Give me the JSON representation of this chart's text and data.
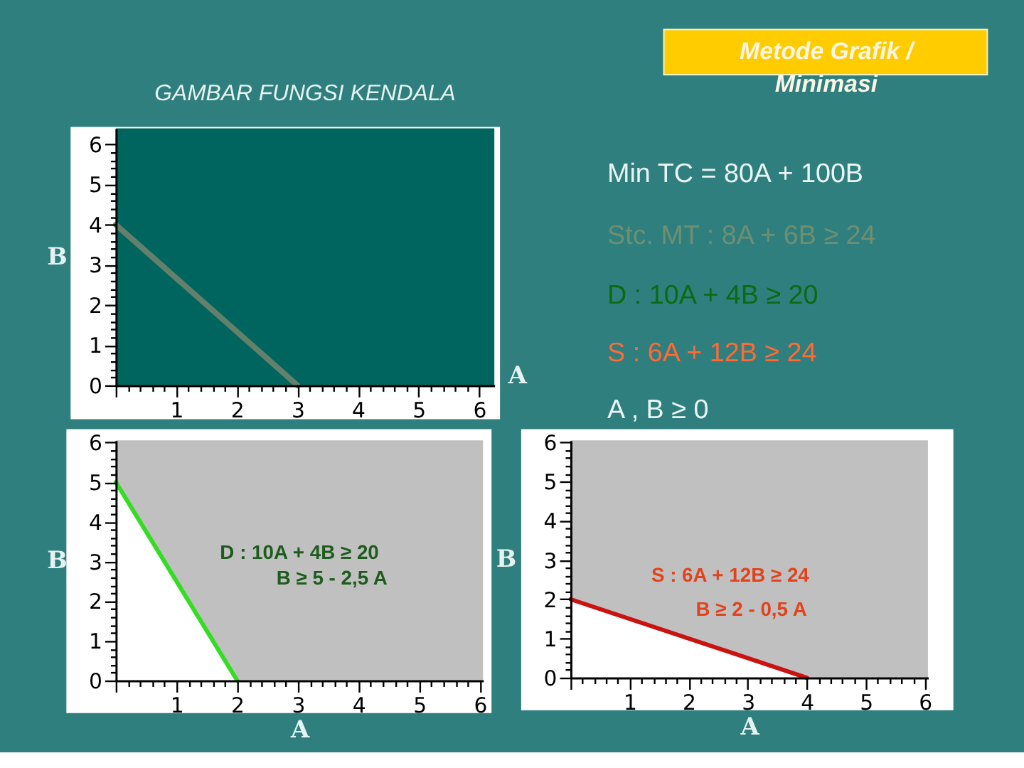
{
  "chart_data": [
    {
      "type": "line",
      "title": "GAMBAR FUNGSI KENDALA",
      "xlabel": "A",
      "ylabel": "B",
      "x": [
        0,
        3
      ],
      "series": [
        {
          "color": "#62806a",
          "values": [
            4,
            0
          ]
        }
      ],
      "xlim": [
        0,
        6.25
      ],
      "ylim": [
        0,
        6.4
      ],
      "xticks": [
        {
          "value": 0,
          "label": null
        },
        {
          "value": 0.2,
          "label": null
        },
        {
          "value": 0.4,
          "label": null
        },
        {
          "value": 0.6,
          "label": null
        },
        {
          "value": 0.8,
          "label": null
        },
        1,
        {
          "value": 1.2,
          "label": null
        },
        {
          "value": 1.4,
          "label": null
        },
        {
          "value": 1.6,
          "label": null
        },
        {
          "value": 1.8,
          "label": null
        },
        2,
        {
          "value": 2.2,
          "label": null
        },
        {
          "value": 2.4,
          "label": null
        },
        {
          "value": 2.6,
          "label": null
        },
        {
          "value": 2.8,
          "label": null
        },
        3,
        {
          "value": 3.2,
          "label": null
        },
        {
          "value": 3.4,
          "label": null
        },
        {
          "value": 3.6,
          "label": null
        },
        {
          "value": 3.8,
          "label": null
        },
        4,
        {
          "value": 4.2,
          "label": null
        },
        {
          "value": 4.4,
          "label": null
        },
        {
          "value": 4.6,
          "label": null
        },
        {
          "value": 4.8,
          "label": null
        },
        5,
        {
          "value": 5.2,
          "label": null
        },
        {
          "value": 5.4,
          "label": null
        },
        {
          "value": 5.6,
          "label": null
        },
        {
          "value": 5.8,
          "label": null
        },
        6
      ],
      "yticks": [
        0,
        {
          "value": 0.2,
          "label": null
        },
        {
          "value": 0.4,
          "label": null
        },
        {
          "value": 0.6,
          "label": null
        },
        {
          "value": 0.8,
          "label": null
        },
        1,
        {
          "value": 1.2,
          "label": null
        },
        {
          "value": 1.4,
          "label": null
        },
        {
          "value": 1.6,
          "label": null
        },
        {
          "value": 1.8,
          "label": null
        },
        2,
        {
          "value": 2.2,
          "label": null
        },
        {
          "value": 2.4,
          "label": null
        },
        {
          "value": 2.6,
          "label": null
        },
        {
          "value": 2.8,
          "label": null
        },
        3,
        {
          "value": 3.2,
          "label": null
        },
        {
          "value": 3.4,
          "label": null
        },
        {
          "value": 3.6,
          "label": null
        },
        {
          "value": 3.8,
          "label": null
        },
        4,
        {
          "value": 4.2,
          "label": null
        },
        {
          "value": 4.4,
          "label": null
        },
        {
          "value": 4.6,
          "label": null
        },
        {
          "value": 4.8,
          "label": null
        },
        5,
        {
          "value": 5.2,
          "label": null
        },
        {
          "value": 5.4,
          "label": null
        },
        {
          "value": 5.6,
          "label": null
        },
        {
          "value": 5.8,
          "label": null
        },
        6
      ]
    },
    {
      "type": "other",
      "title": "Metode Grafik / Minimasi",
      "annotations": [
        "Min TC = 80A + 100B",
        "Stc. MT : 8A + 6B ≥ 24",
        "D : 10A + 4B ≥ 20",
        "S : 6A + 12B ≥ 24",
        "A , B ≥ 0"
      ],
      "colors": [
        "#eaf4f4",
        "#6f8f72",
        "#0b6b12",
        "#ff6a35",
        "#eaf4f4"
      ]
    },
    {
      "type": "line",
      "xlabel": "A",
      "ylabel": "B",
      "x": [
        0,
        2
      ],
      "series": [
        {
          "color": "#33dd22",
          "values": [
            5,
            0
          ],
          "lower": [
            0,
            0
          ],
          "upper": [
            5,
            0
          ]
        }
      ],
      "annotations": [
        "D : 10A + 4B ≥ 20",
        "B ≥ 5 - 2,5 A"
      ],
      "xlim": [
        0,
        6.05
      ],
      "ylim": [
        0,
        6.05
      ],
      "xticks": [
        {
          "value": 0,
          "label": null
        },
        {
          "value": 0.2,
          "label": null
        },
        {
          "value": 0.4,
          "label": null
        },
        {
          "value": 0.6,
          "label": null
        },
        {
          "value": 0.8,
          "label": null
        },
        1,
        {
          "value": 1.2,
          "label": null
        },
        {
          "value": 1.4,
          "label": null
        },
        {
          "value": 1.6,
          "label": null
        },
        {
          "value": 1.8,
          "label": null
        },
        2,
        {
          "value": 2.2,
          "label": null
        },
        {
          "value": 2.4,
          "label": null
        },
        {
          "value": 2.6,
          "label": null
        },
        {
          "value": 2.8,
          "label": null
        },
        3,
        {
          "value": 3.2,
          "label": null
        },
        {
          "value": 3.4,
          "label": null
        },
        {
          "value": 3.6,
          "label": null
        },
        {
          "value": 3.8,
          "label": null
        },
        4,
        {
          "value": 4.2,
          "label": null
        },
        {
          "value": 4.4,
          "label": null
        },
        {
          "value": 4.6,
          "label": null
        },
        {
          "value": 4.8,
          "label": null
        },
        5,
        {
          "value": 5.2,
          "label": null
        },
        {
          "value": 5.4,
          "label": null
        },
        {
          "value": 5.6,
          "label": null
        },
        {
          "value": 5.8,
          "label": null
        },
        6
      ],
      "yticks": [
        0,
        {
          "value": 0.2,
          "label": null
        },
        {
          "value": 0.4,
          "label": null
        },
        {
          "value": 0.6,
          "label": null
        },
        {
          "value": 0.8,
          "label": null
        },
        1,
        {
          "value": 1.2,
          "label": null
        },
        {
          "value": 1.4,
          "label": null
        },
        {
          "value": 1.6,
          "label": null
        },
        {
          "value": 1.8,
          "label": null
        },
        2,
        {
          "value": 2.2,
          "label": null
        },
        {
          "value": 2.4,
          "label": null
        },
        {
          "value": 2.6,
          "label": null
        },
        {
          "value": 2.8,
          "label": null
        },
        3,
        {
          "value": 3.2,
          "label": null
        },
        {
          "value": 3.4,
          "label": null
        },
        {
          "value": 3.6,
          "label": null
        },
        {
          "value": 3.8,
          "label": null
        },
        4,
        {
          "value": 4.2,
          "label": null
        },
        {
          "value": 4.4,
          "label": null
        },
        {
          "value": 4.6,
          "label": null
        },
        {
          "value": 4.8,
          "label": null
        },
        5,
        {
          "value": 5.2,
          "label": null
        },
        {
          "value": 5.4,
          "label": null
        },
        {
          "value": 5.6,
          "label": null
        },
        {
          "value": 5.8,
          "label": null
        },
        6
      ]
    },
    {
      "type": "line",
      "xlabel": "A",
      "ylabel": "B",
      "x": [
        0,
        4
      ],
      "series": [
        {
          "color": "#cc1111",
          "values": [
            2,
            0
          ],
          "lower": [
            0,
            0
          ],
          "upper": [
            2,
            0
          ]
        }
      ],
      "annotations": [
        "S : 6A + 12B ≥ 24",
        "B ≥ 2 - 0,5 A"
      ],
      "xlim": [
        0,
        6.05
      ],
      "ylim": [
        0,
        6.05
      ],
      "xticks": [
        {
          "value": 0,
          "label": null
        },
        {
          "value": 0.2,
          "label": null
        },
        {
          "value": 0.4,
          "label": null
        },
        {
          "value": 0.6,
          "label": null
        },
        {
          "value": 0.8,
          "label": null
        },
        1,
        {
          "value": 1.2,
          "label": null
        },
        {
          "value": 1.4,
          "label": null
        },
        {
          "value": 1.6,
          "label": null
        },
        {
          "value": 1.8,
          "label": null
        },
        2,
        {
          "value": 2.2,
          "label": null
        },
        {
          "value": 2.4,
          "label": null
        },
        {
          "value": 2.6,
          "label": null
        },
        {
          "value": 2.8,
          "label": null
        },
        3,
        {
          "value": 3.2,
          "label": null
        },
        {
          "value": 3.4,
          "label": null
        },
        {
          "value": 3.6,
          "label": null
        },
        {
          "value": 3.8,
          "label": null
        },
        4,
        {
          "value": 4.2,
          "label": null
        },
        {
          "value": 4.4,
          "label": null
        },
        {
          "value": 4.6,
          "label": null
        },
        {
          "value": 4.8,
          "label": null
        },
        5,
        {
          "value": 5.2,
          "label": null
        },
        {
          "value": 5.4,
          "label": null
        },
        {
          "value": 5.6,
          "label": null
        },
        {
          "value": 5.8,
          "label": null
        },
        6
      ],
      "yticks": [
        0,
        {
          "value": 0.2,
          "label": null
        },
        {
          "value": 0.4,
          "label": null
        },
        {
          "value": 0.6,
          "label": null
        },
        {
          "value": 0.8,
          "label": null
        },
        1,
        {
          "value": 1.2,
          "label": null
        },
        {
          "value": 1.4,
          "label": null
        },
        {
          "value": 1.6,
          "label": null
        },
        {
          "value": 1.8,
          "label": null
        },
        2,
        {
          "value": 2.2,
          "label": null
        },
        {
          "value": 2.4,
          "label": null
        },
        {
          "value": 2.6,
          "label": null
        },
        {
          "value": 2.8,
          "label": null
        },
        3,
        {
          "value": 3.2,
          "label": null
        },
        {
          "value": 3.4,
          "label": null
        },
        {
          "value": 3.6,
          "label": null
        },
        {
          "value": 3.8,
          "label": null
        },
        4,
        {
          "value": 4.2,
          "label": null
        },
        {
          "value": 4.4,
          "label": null
        },
        {
          "value": 4.6,
          "label": null
        },
        {
          "value": 4.8,
          "label": null
        },
        5,
        {
          "value": 5.2,
          "label": null
        },
        {
          "value": 5.4,
          "label": null
        },
        {
          "value": 5.6,
          "label": null
        },
        {
          "value": 5.8,
          "label": null
        },
        6
      ]
    }
  ]
}
